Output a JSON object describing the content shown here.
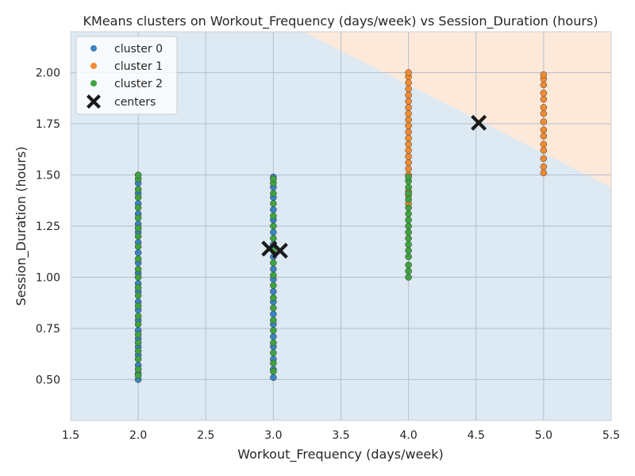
{
  "chart_data": {
    "type": "scatter",
    "title": "KMeans clusters on Workout_Frequency (days/week) vs Session_Duration (hours)",
    "xlabel": "Workout_Frequency (days/week)",
    "ylabel": "Session_Duration (hours)",
    "xlim": [
      1.5,
      5.5
    ],
    "ylim": [
      0.3,
      2.2
    ],
    "xticks": [
      1.5,
      2.0,
      2.5,
      3.0,
      3.5,
      4.0,
      4.5,
      5.0,
      5.5
    ],
    "xtick_labels": [
      "1.5",
      "2.0",
      "2.5",
      "3.0",
      "3.5",
      "4.0",
      "4.5",
      "5.0",
      "5.5"
    ],
    "yticks": [
      0.5,
      0.75,
      1.0,
      1.25,
      1.5,
      1.75,
      2.0
    ],
    "ytick_labels": [
      "0.50",
      "0.75",
      "1.00",
      "1.25",
      "1.50",
      "1.75",
      "2.00"
    ],
    "grid": true,
    "legend_position": "top-left",
    "colors": {
      "cluster0": "#3a84c2",
      "cluster1": "#f28c33",
      "cluster2": "#3fa33f",
      "region_a": "#dde9f3",
      "region_b": "#fde9da",
      "grid": "#b3bfca",
      "centers": "#1a1a1a"
    },
    "decision_boundary": [
      [
        3.22,
        2.2
      ],
      [
        5.5,
        1.44
      ]
    ],
    "series": [
      {
        "name": "cluster 0",
        "color_key": "cluster0",
        "points": [
          [
            2.0,
            0.5
          ],
          [
            2.0,
            0.53
          ],
          [
            2.0,
            0.57
          ],
          [
            2.0,
            0.62
          ],
          [
            2.0,
            0.66
          ],
          [
            2.0,
            0.7
          ],
          [
            2.0,
            0.74
          ],
          [
            2.0,
            0.79
          ],
          [
            2.0,
            0.84
          ],
          [
            2.0,
            0.88
          ],
          [
            2.0,
            0.93
          ],
          [
            2.0,
            0.97
          ],
          [
            2.0,
            1.02
          ],
          [
            2.0,
            1.07
          ],
          [
            2.0,
            1.12
          ],
          [
            2.0,
            1.17
          ],
          [
            2.0,
            1.22
          ],
          [
            2.0,
            1.26
          ],
          [
            2.0,
            1.31
          ],
          [
            2.0,
            1.36
          ],
          [
            2.0,
            1.41
          ],
          [
            2.0,
            1.46
          ],
          [
            3.0,
            0.51
          ],
          [
            3.0,
            0.55
          ],
          [
            3.0,
            0.6
          ],
          [
            3.0,
            0.66
          ],
          [
            3.0,
            0.71
          ],
          [
            3.0,
            0.77
          ],
          [
            3.0,
            0.82
          ],
          [
            3.0,
            0.88
          ],
          [
            3.0,
            0.93
          ],
          [
            3.0,
            0.99
          ],
          [
            3.0,
            1.04
          ],
          [
            3.0,
            1.1
          ],
          [
            3.0,
            1.16
          ],
          [
            3.0,
            1.22
          ],
          [
            3.0,
            1.28
          ],
          [
            3.0,
            1.33
          ],
          [
            3.0,
            1.39
          ],
          [
            3.0,
            1.44
          ],
          [
            3.0,
            1.49
          ]
        ]
      },
      {
        "name": "cluster 1",
        "color_key": "cluster1",
        "points": [
          [
            4.0,
            1.36
          ],
          [
            4.0,
            1.4
          ],
          [
            4.0,
            1.42
          ],
          [
            4.0,
            1.5
          ],
          [
            4.0,
            1.53
          ],
          [
            4.0,
            1.56
          ],
          [
            4.0,
            1.59
          ],
          [
            4.0,
            1.62
          ],
          [
            4.0,
            1.65
          ],
          [
            4.0,
            1.68
          ],
          [
            4.0,
            1.71
          ],
          [
            4.0,
            1.74
          ],
          [
            4.0,
            1.77
          ],
          [
            4.0,
            1.8
          ],
          [
            4.0,
            1.83
          ],
          [
            4.0,
            1.86
          ],
          [
            4.0,
            1.89
          ],
          [
            4.0,
            1.92
          ],
          [
            4.0,
            1.95
          ],
          [
            4.0,
            1.98
          ],
          [
            4.0,
            2.0
          ],
          [
            5.0,
            1.51
          ],
          [
            5.0,
            1.54
          ],
          [
            5.0,
            1.58
          ],
          [
            5.0,
            1.62
          ],
          [
            5.0,
            1.65
          ],
          [
            5.0,
            1.69
          ],
          [
            5.0,
            1.72
          ],
          [
            5.0,
            1.76
          ],
          [
            5.0,
            1.8
          ],
          [
            5.0,
            1.83
          ],
          [
            5.0,
            1.87
          ],
          [
            5.0,
            1.9
          ],
          [
            5.0,
            1.94
          ],
          [
            5.0,
            1.97
          ],
          [
            5.0,
            1.99
          ]
        ]
      },
      {
        "name": "cluster 2",
        "color_key": "cluster2",
        "points": [
          [
            2.0,
            0.52
          ],
          [
            2.0,
            0.55
          ],
          [
            2.0,
            0.6
          ],
          [
            2.0,
            0.64
          ],
          [
            2.0,
            0.68
          ],
          [
            2.0,
            0.72
          ],
          [
            2.0,
            0.77
          ],
          [
            2.0,
            0.81
          ],
          [
            2.0,
            0.86
          ],
          [
            2.0,
            0.91
          ],
          [
            2.0,
            0.95
          ],
          [
            2.0,
            1.0
          ],
          [
            2.0,
            1.04
          ],
          [
            2.0,
            1.09
          ],
          [
            2.0,
            1.15
          ],
          [
            2.0,
            1.2
          ],
          [
            2.0,
            1.24
          ],
          [
            2.0,
            1.29
          ],
          [
            2.0,
            1.34
          ],
          [
            2.0,
            1.39
          ],
          [
            2.0,
            1.43
          ],
          [
            2.0,
            1.48
          ],
          [
            2.0,
            1.5
          ],
          [
            3.0,
            0.54
          ],
          [
            3.0,
            0.58
          ],
          [
            3.0,
            0.63
          ],
          [
            3.0,
            0.68
          ],
          [
            3.0,
            0.74
          ],
          [
            3.0,
            0.79
          ],
          [
            3.0,
            0.85
          ],
          [
            3.0,
            0.9
          ],
          [
            3.0,
            0.96
          ],
          [
            3.0,
            1.01
          ],
          [
            3.0,
            1.07
          ],
          [
            3.0,
            1.13
          ],
          [
            3.0,
            1.19
          ],
          [
            3.0,
            1.25
          ],
          [
            3.0,
            1.3
          ],
          [
            3.0,
            1.36
          ],
          [
            3.0,
            1.41
          ],
          [
            3.0,
            1.46
          ],
          [
            3.0,
            1.48
          ],
          [
            4.0,
            1.0
          ],
          [
            4.0,
            1.03
          ],
          [
            4.0,
            1.06
          ],
          [
            4.0,
            1.1
          ],
          [
            4.0,
            1.13
          ],
          [
            4.0,
            1.16
          ],
          [
            4.0,
            1.19
          ],
          [
            4.0,
            1.22
          ],
          [
            4.0,
            1.25
          ],
          [
            4.0,
            1.28
          ],
          [
            4.0,
            1.31
          ],
          [
            4.0,
            1.34
          ],
          [
            4.0,
            1.38
          ],
          [
            4.0,
            1.41
          ],
          [
            4.0,
            1.44
          ],
          [
            4.0,
            1.47
          ],
          [
            4.0,
            1.49
          ]
        ]
      }
    ],
    "centers": {
      "name": "centers",
      "points": [
        [
          2.97,
          1.14
        ],
        [
          3.05,
          1.13
        ],
        [
          4.52,
          1.755
        ]
      ]
    }
  }
}
